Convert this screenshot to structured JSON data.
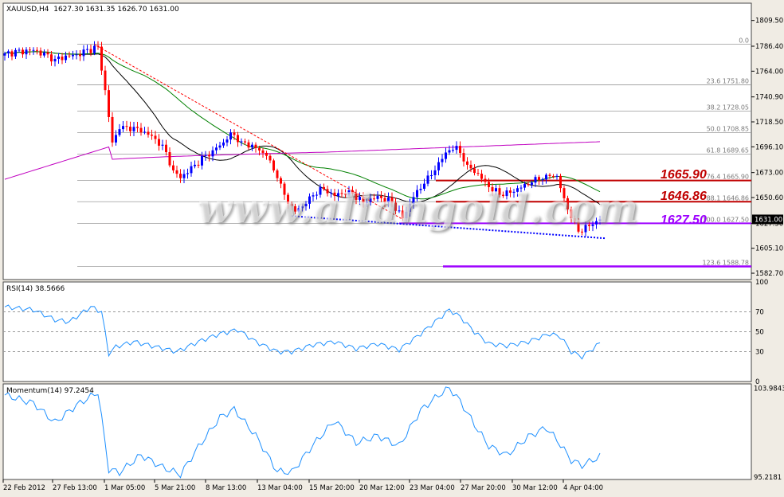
{
  "header": {
    "symbol": "XAUUSD,H4",
    "ohlc": "1627.30 1631.35 1626.70 1631.00"
  },
  "watermark": "www.aliangold.com",
  "key_levels": [
    {
      "label": "1665.90",
      "value": 1665.9,
      "color": "#c00000"
    },
    {
      "label": "1646.86",
      "value": 1646.86,
      "color": "#c00000"
    },
    {
      "label": "1627.50",
      "value": 1627.5,
      "color": "#9d00ff"
    }
  ],
  "current_price": "1631.00",
  "price_axis_labels": [
    "1809.50",
    "1786.40",
    "1764.00",
    "1740.90",
    "1718.50",
    "1696.10",
    "1673.00",
    "1650.60",
    "1627.50",
    "1605.10",
    "1582.70"
  ],
  "time_axis_labels": [
    "22 Feb 2012",
    "27 Feb 13:00",
    "1 Mar 05:00",
    "5 Mar 21:00",
    "8 Mar 13:00",
    "13 Mar 04:00",
    "15 Mar 20:00",
    "20 Mar 12:00",
    "23 Mar 04:00",
    "27 Mar 20:00",
    "30 Mar 12:00",
    "4 Apr 04:00"
  ],
  "fibonacci": [
    {
      "label": "0.0",
      "value": 1788.2
    },
    {
      "label": "23.6 1751.80",
      "value": 1751.8
    },
    {
      "label": "38.2 1728.05",
      "value": 1728.05
    },
    {
      "label": "50.0 1708.85",
      "value": 1708.85
    },
    {
      "label": "61.8 1689.65",
      "value": 1689.65
    },
    {
      "label": "76.4 1665.90",
      "value": 1665.9
    },
    {
      "label": "88.1 1646.86",
      "value": 1646.86
    },
    {
      "label": "100.0 1627.50",
      "value": 1627.5
    },
    {
      "label": "123.6 1588.78",
      "value": 1588.78
    }
  ],
  "rsi": {
    "title": "RSI(14) 38.5666",
    "axis_labels": [
      "100",
      "70",
      "50",
      "30",
      "0"
    ],
    "levels": [
      70,
      50,
      30
    ]
  },
  "momentum": {
    "title": "Momentum(14) 97.2454",
    "axis_labels": [
      "103.9843",
      "95.2181"
    ]
  },
  "colors": {
    "bull": "#0000ff",
    "bear": "#ff0000",
    "ma_black": "#000000",
    "ma_green": "#008000",
    "ma_purple": "#c000c0",
    "indicator": "#1e90ff"
  },
  "chart_data": {
    "type": "candlestick",
    "title": "XAUUSD,H4",
    "ylim": [
      1577,
      1825
    ],
    "x_categories": [
      "22 Feb 2012",
      "27 Feb 13:00",
      "1 Mar 05:00",
      "5 Mar 21:00",
      "8 Mar 13:00",
      "13 Mar 04:00",
      "15 Mar 20:00",
      "20 Mar 12:00",
      "23 Mar 04:00",
      "27 Mar 20:00",
      "30 Mar 12:00",
      "4 Apr 04:00"
    ],
    "close_path": [
      {
        "t": 0,
        "close": 1780
      },
      {
        "t": 8,
        "close": 1783
      },
      {
        "t": 14,
        "close": 1775
      },
      {
        "t": 20,
        "close": 1779
      },
      {
        "t": 26,
        "close": 1786
      },
      {
        "t": 28,
        "close": 1747
      },
      {
        "t": 30,
        "close": 1700
      },
      {
        "t": 32,
        "close": 1712
      },
      {
        "t": 36,
        "close": 1714
      },
      {
        "t": 40,
        "close": 1707
      },
      {
        "t": 44,
        "close": 1698
      },
      {
        "t": 47,
        "close": 1675
      },
      {
        "t": 49,
        "close": 1668
      },
      {
        "t": 53,
        "close": 1680
      },
      {
        "t": 58,
        "close": 1693
      },
      {
        "t": 61,
        "close": 1700
      },
      {
        "t": 63,
        "close": 1709
      },
      {
        "t": 66,
        "close": 1701
      },
      {
        "t": 70,
        "close": 1695
      },
      {
        "t": 73,
        "close": 1688
      },
      {
        "t": 76,
        "close": 1668
      },
      {
        "t": 79,
        "close": 1645
      },
      {
        "t": 81,
        "close": 1638
      },
      {
        "t": 84,
        "close": 1645
      },
      {
        "t": 88,
        "close": 1660
      },
      {
        "t": 92,
        "close": 1652
      },
      {
        "t": 96,
        "close": 1657
      },
      {
        "t": 100,
        "close": 1646
      },
      {
        "t": 104,
        "close": 1652
      },
      {
        "t": 108,
        "close": 1646
      },
      {
        "t": 111,
        "close": 1632
      },
      {
        "t": 114,
        "close": 1651
      },
      {
        "t": 117,
        "close": 1663
      },
      {
        "t": 120,
        "close": 1675
      },
      {
        "t": 123,
        "close": 1691
      },
      {
        "t": 126,
        "close": 1697
      },
      {
        "t": 129,
        "close": 1680
      },
      {
        "t": 132,
        "close": 1672
      },
      {
        "t": 135,
        "close": 1660
      },
      {
        "t": 139,
        "close": 1652
      },
      {
        "t": 143,
        "close": 1659
      },
      {
        "t": 147,
        "close": 1664
      },
      {
        "t": 151,
        "close": 1671
      },
      {
        "t": 154,
        "close": 1670
      },
      {
        "t": 156,
        "close": 1650
      },
      {
        "t": 158,
        "close": 1632
      },
      {
        "t": 160,
        "close": 1620
      },
      {
        "t": 163,
        "close": 1625
      },
      {
        "t": 166,
        "close": 1631
      }
    ],
    "rsi_path": [
      [
        0,
        75
      ],
      [
        8,
        72
      ],
      [
        14,
        62
      ],
      [
        18,
        60
      ],
      [
        24,
        75
      ],
      [
        27,
        70
      ],
      [
        29,
        28
      ],
      [
        31,
        35
      ],
      [
        36,
        40
      ],
      [
        42,
        35
      ],
      [
        48,
        30
      ],
      [
        54,
        40
      ],
      [
        60,
        48
      ],
      [
        65,
        52
      ],
      [
        70,
        40
      ],
      [
        76,
        30
      ],
      [
        80,
        30
      ],
      [
        86,
        37
      ],
      [
        92,
        40
      ],
      [
        98,
        33
      ],
      [
        104,
        38
      ],
      [
        110,
        32
      ],
      [
        116,
        48
      ],
      [
        120,
        60
      ],
      [
        124,
        72
      ],
      [
        127,
        65
      ],
      [
        131,
        50
      ],
      [
        135,
        38
      ],
      [
        140,
        36
      ],
      [
        146,
        40
      ],
      [
        152,
        48
      ],
      [
        155,
        45
      ],
      [
        158,
        30
      ],
      [
        161,
        25
      ],
      [
        164,
        33
      ],
      [
        166,
        38.6
      ]
    ],
    "momentum_path": [
      [
        0,
        103.3
      ],
      [
        8,
        102.5
      ],
      [
        14,
        100.6
      ],
      [
        20,
        102.3
      ],
      [
        26,
        103.6
      ],
      [
        29,
        96.0
      ],
      [
        32,
        95.7
      ],
      [
        38,
        97.4
      ],
      [
        44,
        96.2
      ],
      [
        49,
        95.5
      ],
      [
        54,
        98.2
      ],
      [
        60,
        101.1
      ],
      [
        64,
        101.9
      ],
      [
        70,
        99.3
      ],
      [
        76,
        95.8
      ],
      [
        80,
        95.7
      ],
      [
        86,
        98.4
      ],
      [
        92,
        100.8
      ],
      [
        98,
        98.6
      ],
      [
        104,
        99.3
      ],
      [
        110,
        98.3
      ],
      [
        116,
        101.8
      ],
      [
        121,
        103.3
      ],
      [
        124,
        104.0
      ],
      [
        127,
        102.7
      ],
      [
        131,
        100.4
      ],
      [
        135,
        98.3
      ],
      [
        140,
        97.4
      ],
      [
        146,
        99.2
      ],
      [
        151,
        100.1
      ],
      [
        154,
        98.9
      ],
      [
        158,
        96.9
      ],
      [
        161,
        96.4
      ],
      [
        166,
        97.25
      ]
    ]
  }
}
